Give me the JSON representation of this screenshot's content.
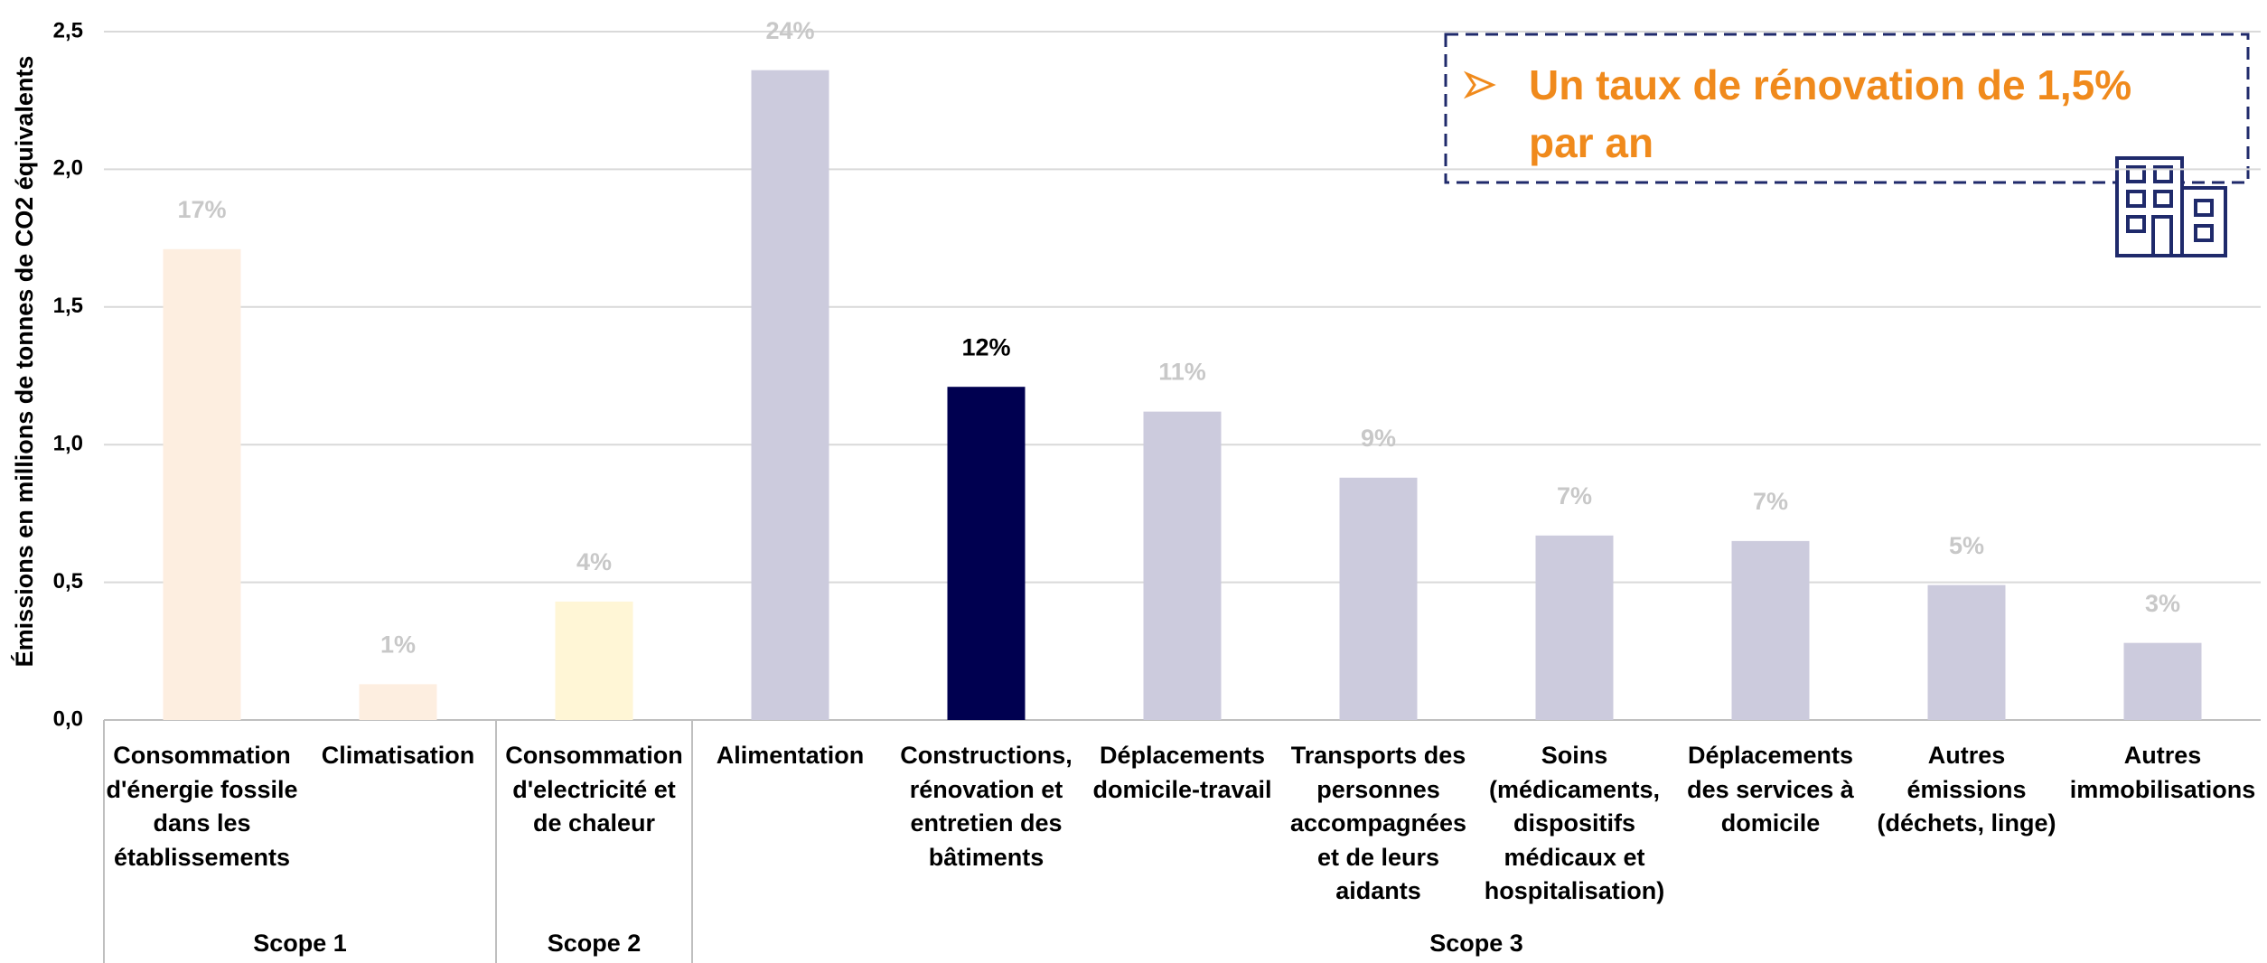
{
  "chart_data": {
    "type": "bar",
    "y_label": "Émissions en millions de tonnes de CO2 équivalents",
    "categories": [
      "Consommation\nd'énergie fossile\ndans les\nétablissements",
      "Climatisation",
      "Consommation\nd'electricité et\nde chaleur",
      "Alimentation",
      "Constructions,\nrénovation et\nentretien des\nbâtiments",
      "Déplacements\ndomicile-travail",
      "Transports des\npersonnes\naccompagnées\net de leurs\naidants",
      "Soins\n(médicaments,\ndispositifs\nmédicaux et\nhospitalisation)",
      "Déplacements\ndes services à\ndomicile",
      "Autres\némissions\n(déchets, linge)",
      "Autres\nimmobilisations"
    ],
    "values": [
      1.71,
      0.13,
      0.43,
      2.36,
      1.21,
      1.12,
      0.88,
      0.67,
      0.65,
      0.49,
      0.28
    ],
    "percent_labels": [
      "17%",
      "1%",
      "4%",
      "24%",
      "12%",
      "11%",
      "9%",
      "7%",
      "7%",
      "5%",
      "3%"
    ],
    "colors": [
      "#fdeee0",
      "#fdeee0",
      "#fff6d6",
      "#cccbdd",
      "#000050",
      "#cccbdd",
      "#cccbdd",
      "#cccbdd",
      "#cccbdd",
      "#cccbdd",
      "#cccbdd"
    ],
    "label_colors": [
      "#c8c8c8",
      "#c8c8c8",
      "#c8c8c8",
      "#c8c8c8",
      "#000000",
      "#c8c8c8",
      "#c8c8c8",
      "#c8c8c8",
      "#c8c8c8",
      "#c8c8c8",
      "#c8c8c8"
    ],
    "groups": [
      {
        "name": "Scope 1",
        "count": 2
      },
      {
        "name": "Scope 2",
        "count": 1
      },
      {
        "name": "Scope 3",
        "count": 8
      }
    ],
    "ylim": [
      0,
      2.5
    ],
    "yticks": [
      {
        "value": 0,
        "label": "0,0"
      },
      {
        "value": 0.5,
        "label": "0,5"
      },
      {
        "value": 1,
        "label": "1,0"
      },
      {
        "value": 1.5,
        "label": "1,5"
      },
      {
        "value": 2,
        "label": "2,0"
      },
      {
        "value": 2.5,
        "label": "2,5"
      }
    ],
    "grid": true,
    "annotation": "Un taux de rénovation de 1,5%\npar an"
  }
}
